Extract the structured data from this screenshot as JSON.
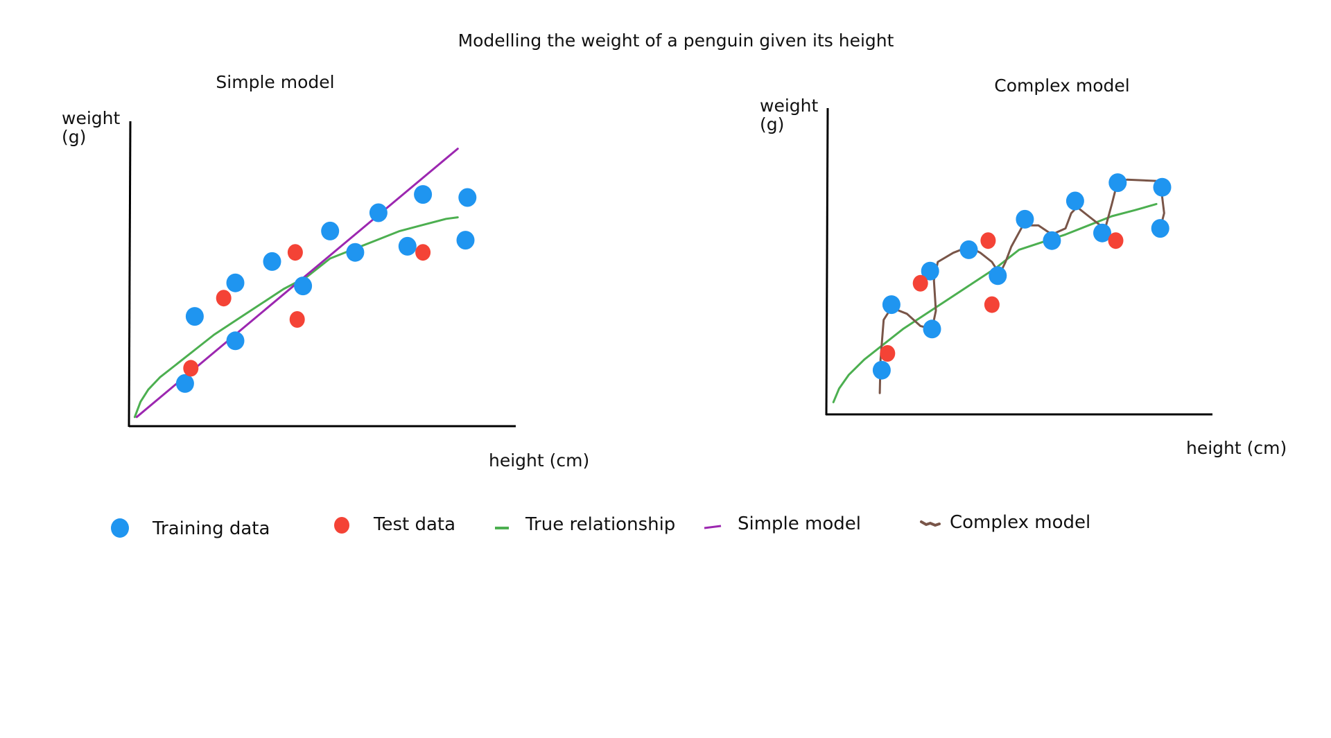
{
  "title": "Modelling the weight of a penguin given its height",
  "colors": {
    "training": "#1f95f0",
    "test": "#f44336",
    "true_relationship": "#4caf50",
    "simple_model": "#9c27b0",
    "complex_model": "#795548",
    "axis": "#000000"
  },
  "legend": {
    "items": [
      {
        "key": "training",
        "label": "Training data",
        "marker": "dot",
        "color": "#1f95f0"
      },
      {
        "key": "test",
        "label": "Test data",
        "marker": "dot",
        "color": "#f44336"
      },
      {
        "key": "true_relationship",
        "label": "True relationship",
        "marker": "line",
        "color": "#4caf50"
      },
      {
        "key": "simple_model",
        "label": "Simple model",
        "marker": "line",
        "color": "#9c27b0"
      },
      {
        "key": "complex_model",
        "label": "Complex model",
        "marker": "wiggle",
        "color": "#795548"
      }
    ]
  },
  "chart_data": [
    {
      "type": "scatter",
      "title": "Simple model",
      "ylabel_lines": [
        "weight",
        "(g)"
      ],
      "xlabel": "height (cm)",
      "xlim": [
        0,
        100
      ],
      "ylim": [
        0,
        100
      ],
      "grid": false,
      "training": [
        {
          "x": 14.5,
          "y": 14
        },
        {
          "x": 17,
          "y": 36
        },
        {
          "x": 27.5,
          "y": 28
        },
        {
          "x": 27.5,
          "y": 47
        },
        {
          "x": 37,
          "y": 54
        },
        {
          "x": 45,
          "y": 46
        },
        {
          "x": 52,
          "y": 64
        },
        {
          "x": 58.5,
          "y": 57
        },
        {
          "x": 64.5,
          "y": 70
        },
        {
          "x": 72,
          "y": 59
        },
        {
          "x": 76,
          "y": 76
        },
        {
          "x": 87,
          "y": 61
        },
        {
          "x": 87.5,
          "y": 75
        }
      ],
      "test": [
        {
          "x": 16,
          "y": 19
        },
        {
          "x": 24.5,
          "y": 42
        },
        {
          "x": 43,
          "y": 57
        },
        {
          "x": 43.5,
          "y": 35
        },
        {
          "x": 76,
          "y": 57
        }
      ],
      "true_relationship": [
        {
          "x": 1.5,
          "y": 3
        },
        {
          "x": 3,
          "y": 8
        },
        {
          "x": 5,
          "y": 12
        },
        {
          "x": 8,
          "y": 16
        },
        {
          "x": 12,
          "y": 20
        },
        {
          "x": 17,
          "y": 25
        },
        {
          "x": 22,
          "y": 30
        },
        {
          "x": 28,
          "y": 35
        },
        {
          "x": 34,
          "y": 40
        },
        {
          "x": 40,
          "y": 45
        },
        {
          "x": 46,
          "y": 49
        },
        {
          "x": 52,
          "y": 55
        },
        {
          "x": 58,
          "y": 58
        },
        {
          "x": 64,
          "y": 61
        },
        {
          "x": 70,
          "y": 64
        },
        {
          "x": 76,
          "y": 66
        },
        {
          "x": 82,
          "y": 68
        },
        {
          "x": 85,
          "y": 68.5
        }
      ],
      "simple_model": [
        {
          "x": 2,
          "y": 3
        },
        {
          "x": 85,
          "y": 91
        }
      ]
    },
    {
      "type": "scatter",
      "title": "Complex model",
      "ylabel_lines": [
        "weight",
        "(g)"
      ],
      "xlabel": "height (cm)",
      "xlim": [
        0,
        100
      ],
      "ylim": [
        0,
        100
      ],
      "grid": false,
      "training": [
        {
          "x": 14.5,
          "y": 14.5
        },
        {
          "x": 17,
          "y": 36
        },
        {
          "x": 27.5,
          "y": 28
        },
        {
          "x": 27,
          "y": 47
        },
        {
          "x": 37,
          "y": 54
        },
        {
          "x": 44.5,
          "y": 45.5
        },
        {
          "x": 51.5,
          "y": 64
        },
        {
          "x": 58.5,
          "y": 57
        },
        {
          "x": 64.5,
          "y": 70
        },
        {
          "x": 71.5,
          "y": 59.5
        },
        {
          "x": 75.5,
          "y": 76
        },
        {
          "x": 86.5,
          "y": 61
        },
        {
          "x": 87,
          "y": 74.5
        }
      ],
      "test": [
        {
          "x": 16,
          "y": 20
        },
        {
          "x": 24.5,
          "y": 43
        },
        {
          "x": 42,
          "y": 57
        },
        {
          "x": 43,
          "y": 36
        },
        {
          "x": 75,
          "y": 57
        }
      ],
      "true_relationship": [
        {
          "x": 2,
          "y": 4
        },
        {
          "x": 3.5,
          "y": 8.5
        },
        {
          "x": 6,
          "y": 13
        },
        {
          "x": 10,
          "y": 18
        },
        {
          "x": 15,
          "y": 23
        },
        {
          "x": 20,
          "y": 28
        },
        {
          "x": 26,
          "y": 33
        },
        {
          "x": 32,
          "y": 38
        },
        {
          "x": 38,
          "y": 43
        },
        {
          "x": 44,
          "y": 48
        },
        {
          "x": 50,
          "y": 54
        },
        {
          "x": 56,
          "y": 56.5
        },
        {
          "x": 62,
          "y": 59
        },
        {
          "x": 68,
          "y": 62
        },
        {
          "x": 74,
          "y": 65
        },
        {
          "x": 80,
          "y": 67
        },
        {
          "x": 85.5,
          "y": 69
        }
      ],
      "complex_model": [
        {
          "x": 14,
          "y": 7
        },
        {
          "x": 14.2,
          "y": 18
        },
        {
          "x": 15,
          "y": 31
        },
        {
          "x": 17,
          "y": 35
        },
        {
          "x": 21,
          "y": 33
        },
        {
          "x": 24.5,
          "y": 29
        },
        {
          "x": 27.5,
          "y": 28
        },
        {
          "x": 28.5,
          "y": 34
        },
        {
          "x": 28,
          "y": 44
        },
        {
          "x": 29,
          "y": 50
        },
        {
          "x": 33,
          "y": 53
        },
        {
          "x": 37,
          "y": 55
        },
        {
          "x": 40,
          "y": 53
        },
        {
          "x": 43,
          "y": 50
        },
        {
          "x": 45,
          "y": 46
        },
        {
          "x": 46.5,
          "y": 50
        },
        {
          "x": 48,
          "y": 55
        },
        {
          "x": 51,
          "y": 62
        },
        {
          "x": 55,
          "y": 62
        },
        {
          "x": 58.5,
          "y": 59
        },
        {
          "x": 62,
          "y": 61
        },
        {
          "x": 63.5,
          "y": 66
        },
        {
          "x": 65,
          "y": 68
        },
        {
          "x": 68,
          "y": 65
        },
        {
          "x": 71,
          "y": 62
        },
        {
          "x": 72.5,
          "y": 62
        },
        {
          "x": 74,
          "y": 69
        },
        {
          "x": 75.5,
          "y": 76.5
        },
        {
          "x": 78,
          "y": 77
        },
        {
          "x": 86.5,
          "y": 76.5
        },
        {
          "x": 87.5,
          "y": 66
        },
        {
          "x": 86.5,
          "y": 61
        }
      ]
    }
  ]
}
